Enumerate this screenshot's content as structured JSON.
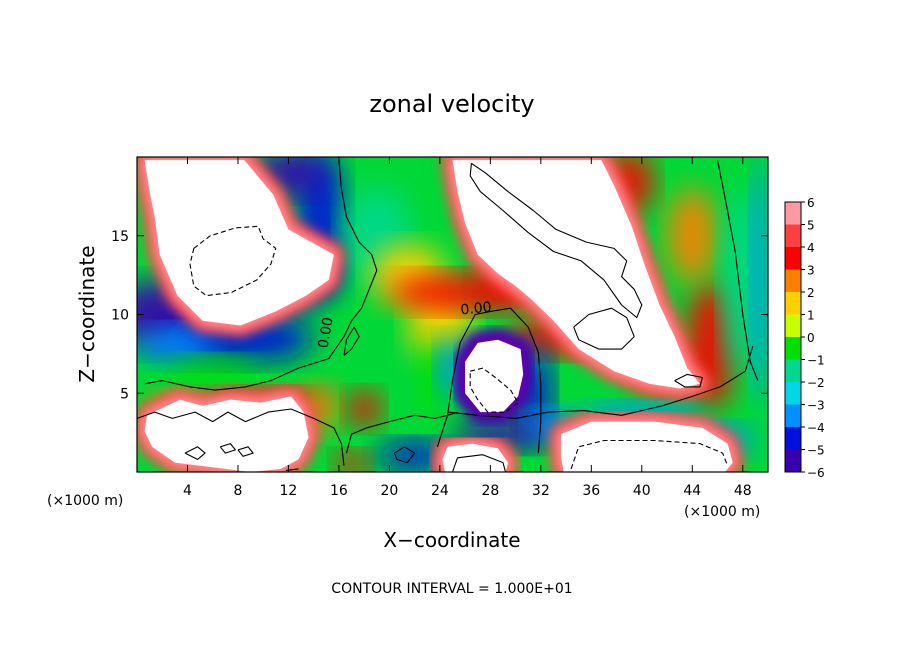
{
  "chart_data": {
    "type": "heatmap",
    "title": "zonal velocity",
    "xlabel": "X−coordinate",
    "ylabel": "Z−coordinate",
    "x_unit_left": "(×1000 m)",
    "x_unit_right": "(×1000 m)",
    "xlim": [
      0,
      50
    ],
    "ylim": [
      0,
      20
    ],
    "x_ticks": [
      4,
      8,
      12,
      16,
      20,
      24,
      28,
      32,
      36,
      40,
      44,
      48
    ],
    "y_ticks": [
      5,
      10,
      15
    ],
    "contour_label": "0.00",
    "contour_interval_text": "CONTOUR INTERVAL = 1.000E+01",
    "colorbar": {
      "range": [
        -6,
        6
      ],
      "levels": [
        6,
        5,
        4,
        3,
        2,
        1,
        0,
        -1,
        -2,
        -3,
        -4,
        -5,
        -6
      ],
      "labels": [
        "6",
        "5",
        "4",
        "3",
        "2",
        "1",
        "0",
        "−1",
        "−2",
        "−3",
        "−4",
        "−5",
        "−6"
      ],
      "colors": [
        "#ff9aa0",
        "#ff4040",
        "#ff0000",
        "#ff8000",
        "#ffd000",
        "#c8ff00",
        "#00e000",
        "#00d890",
        "#00d8e8",
        "#0090ff",
        "#0010e0",
        "#3800b0",
        "#7000a8"
      ]
    },
    "saturated_regions": [
      {
        "label": "+",
        "polygon": [
          [
            0.6,
            19.8
          ],
          [
            8.5,
            19.8
          ],
          [
            10.8,
            17.6
          ],
          [
            12.0,
            15.4
          ],
          [
            13.8,
            14.6
          ],
          [
            15.6,
            13.8
          ],
          [
            15.2,
            12.2
          ],
          [
            13.4,
            11.2
          ],
          [
            11.0,
            10.2
          ],
          [
            8.2,
            9.3
          ],
          [
            5.2,
            9.6
          ],
          [
            3.2,
            11.2
          ],
          [
            1.8,
            13.8
          ],
          [
            1.4,
            16.2
          ],
          [
            1.0,
            17.8
          ]
        ]
      },
      {
        "label": "+",
        "polygon": [
          [
            25.0,
            19.8
          ],
          [
            36.8,
            19.8
          ],
          [
            37.8,
            18.2
          ],
          [
            39.2,
            15.6
          ],
          [
            40.2,
            13.2
          ],
          [
            41.4,
            10.6
          ],
          [
            42.6,
            8.6
          ],
          [
            43.6,
            6.6
          ],
          [
            44.6,
            5.6
          ],
          [
            43.0,
            5.3
          ],
          [
            40.6,
            5.6
          ],
          [
            37.8,
            6.4
          ],
          [
            35.0,
            7.8
          ],
          [
            33.0,
            9.6
          ],
          [
            31.2,
            11.0
          ],
          [
            30.0,
            11.8
          ],
          [
            28.6,
            12.6
          ],
          [
            27.0,
            13.8
          ],
          [
            26.0,
            15.8
          ],
          [
            25.4,
            17.8
          ]
        ]
      },
      {
        "label": "−",
        "polygon": [
          [
            26.0,
            7.0
          ],
          [
            27.0,
            8.2
          ],
          [
            28.6,
            8.4
          ],
          [
            30.4,
            7.8
          ],
          [
            30.6,
            6.2
          ],
          [
            30.2,
            4.8
          ],
          [
            29.0,
            3.8
          ],
          [
            27.2,
            3.8
          ],
          [
            26.0,
            5.0
          ]
        ]
      },
      {
        "label": "+",
        "polygon": [
          [
            0.8,
            3.6
          ],
          [
            3.4,
            4.6
          ],
          [
            5.2,
            4.2
          ],
          [
            7.4,
            4.6
          ],
          [
            9.8,
            4.4
          ],
          [
            12.2,
            4.8
          ],
          [
            13.2,
            3.8
          ],
          [
            13.6,
            2.2
          ],
          [
            12.8,
            0.8
          ],
          [
            11.4,
            0.2
          ],
          [
            9.0,
            0.0
          ],
          [
            6.0,
            0.3
          ],
          [
            3.0,
            0.6
          ],
          [
            1.2,
            1.6
          ],
          [
            0.6,
            2.6
          ]
        ]
      },
      {
        "label": "+",
        "polygon": [
          [
            33.6,
            2.4
          ],
          [
            36.0,
            3.2
          ],
          [
            41.0,
            3.2
          ],
          [
            44.8,
            2.8
          ],
          [
            46.8,
            1.8
          ],
          [
            47.2,
            0.6
          ],
          [
            46.6,
            0.0
          ],
          [
            33.8,
            0.0
          ],
          [
            33.6,
            1.0
          ]
        ]
      },
      {
        "label": "+",
        "polygon": [
          [
            24.6,
            1.6
          ],
          [
            26.6,
            1.8
          ],
          [
            28.6,
            1.5
          ],
          [
            29.4,
            0.6
          ],
          [
            29.2,
            0.0
          ],
          [
            24.4,
            0.0
          ],
          [
            24.2,
            0.8
          ]
        ]
      }
    ],
    "contours": [
      {
        "style": "dashed",
        "points": [
          [
            4.5,
            14.2
          ],
          [
            5.8,
            15.0
          ],
          [
            7.8,
            15.5
          ],
          [
            9.6,
            15.6
          ],
          [
            10.0,
            14.8
          ],
          [
            11.0,
            14.2
          ],
          [
            10.6,
            13.2
          ],
          [
            9.5,
            12.2
          ],
          [
            7.5,
            11.4
          ],
          [
            5.5,
            11.2
          ],
          [
            4.5,
            11.8
          ],
          [
            4.2,
            13.2
          ],
          [
            4.5,
            14.2
          ]
        ]
      },
      {
        "style": "solid",
        "points": [
          [
            16.0,
            19.8
          ],
          [
            16.2,
            18.0
          ],
          [
            16.6,
            16.2
          ],
          [
            17.6,
            14.6
          ],
          [
            18.6,
            13.8
          ],
          [
            19.0,
            12.8
          ],
          [
            18.4,
            11.6
          ],
          [
            17.8,
            10.4
          ],
          [
            17.0,
            9.6
          ],
          [
            16.4,
            8.6
          ],
          [
            15.2,
            7.2
          ],
          [
            12.8,
            6.6
          ],
          [
            10.6,
            5.8
          ],
          [
            8.6,
            5.4
          ],
          [
            6.2,
            5.2
          ],
          [
            4.2,
            5.4
          ],
          [
            2.0,
            5.8
          ],
          [
            0.6,
            5.6
          ]
        ]
      },
      {
        "style": "solid",
        "points": [
          [
            0.0,
            3.4
          ],
          [
            1.4,
            3.8
          ],
          [
            2.8,
            3.4
          ],
          [
            4.6,
            3.8
          ],
          [
            6.0,
            3.2
          ],
          [
            7.2,
            3.8
          ],
          [
            8.6,
            3.2
          ],
          [
            10.4,
            3.8
          ],
          [
            12.2,
            4.0
          ],
          [
            14.0,
            3.4
          ],
          [
            15.6,
            2.8
          ],
          [
            16.2,
            1.8
          ],
          [
            16.4,
            0.4
          ]
        ]
      },
      {
        "style": "solid",
        "points": [
          [
            23.8,
            1.6
          ],
          [
            24.6,
            3.6
          ],
          [
            25.0,
            5.8
          ],
          [
            25.6,
            8.2
          ],
          [
            26.8,
            10.0
          ],
          [
            28.0,
            10.2
          ],
          [
            29.6,
            10.4
          ],
          [
            31.0,
            9.2
          ],
          [
            31.8,
            7.6
          ],
          [
            32.0,
            5.6
          ],
          [
            32.0,
            3.2
          ],
          [
            31.8,
            1.2
          ]
        ]
      },
      {
        "style": "solid",
        "points": [
          [
            16.6,
            1.2
          ],
          [
            17.0,
            2.4
          ],
          [
            18.2,
            2.8
          ],
          [
            20.0,
            3.2
          ],
          [
            22.0,
            3.6
          ],
          [
            23.6,
            3.4
          ],
          [
            24.6,
            3.6
          ],
          [
            25.4,
            3.8
          ]
        ]
      },
      {
        "style": "solid",
        "points": [
          [
            24.6,
            3.8
          ],
          [
            27.0,
            3.6
          ],
          [
            30.0,
            3.4
          ],
          [
            32.6,
            3.8
          ],
          [
            35.4,
            3.9
          ],
          [
            38.4,
            3.6
          ],
          [
            41.6,
            4.2
          ],
          [
            44.0,
            4.8
          ],
          [
            46.2,
            5.4
          ],
          [
            48.2,
            6.4
          ],
          [
            48.8,
            8.0
          ]
        ]
      },
      {
        "style": "solid",
        "points": [
          [
            46.0,
            19.8
          ],
          [
            46.6,
            17.4
          ],
          [
            47.4,
            14.0
          ],
          [
            48.0,
            10.0
          ],
          [
            48.6,
            7.0
          ],
          [
            49.2,
            5.8
          ]
        ]
      },
      {
        "style": "solid",
        "points": [
          [
            16.4,
            7.4
          ],
          [
            16.6,
            8.4
          ],
          [
            17.2,
            9.2
          ],
          [
            17.6,
            8.6
          ],
          [
            17.0,
            7.8
          ],
          [
            16.4,
            7.4
          ]
        ]
      },
      {
        "style": "solid",
        "points": [
          [
            26.5,
            19.6
          ],
          [
            27.6,
            19.0
          ],
          [
            29.4,
            17.8
          ],
          [
            31.4,
            16.6
          ],
          [
            33.2,
            15.4
          ],
          [
            35.6,
            14.6
          ],
          [
            37.8,
            14.2
          ],
          [
            38.8,
            13.4
          ],
          [
            38.4,
            12.4
          ],
          [
            39.4,
            11.6
          ],
          [
            40.0,
            10.6
          ],
          [
            39.6,
            9.8
          ],
          [
            38.4,
            10.6
          ],
          [
            37.0,
            12.2
          ],
          [
            35.2,
            13.4
          ],
          [
            33.0,
            14.0
          ],
          [
            31.0,
            15.2
          ],
          [
            29.0,
            16.6
          ],
          [
            27.2,
            17.8
          ],
          [
            26.4,
            18.8
          ],
          [
            26.5,
            19.6
          ]
        ]
      },
      {
        "style": "solid",
        "points": [
          [
            34.6,
            9.2
          ],
          [
            35.8,
            10.0
          ],
          [
            37.6,
            10.4
          ],
          [
            38.8,
            9.8
          ],
          [
            39.4,
            8.6
          ],
          [
            38.4,
            7.8
          ],
          [
            36.6,
            7.8
          ],
          [
            35.0,
            8.4
          ],
          [
            34.6,
            9.2
          ]
        ]
      },
      {
        "style": "solid",
        "points": [
          [
            42.6,
            5.8
          ],
          [
            43.6,
            6.2
          ],
          [
            44.8,
            6.0
          ],
          [
            44.6,
            5.4
          ],
          [
            43.4,
            5.4
          ],
          [
            42.6,
            5.8
          ]
        ]
      },
      {
        "style": "dashed",
        "points": [
          [
            26.4,
            6.4
          ],
          [
            27.4,
            6.6
          ],
          [
            28.4,
            6.0
          ],
          [
            29.6,
            5.2
          ],
          [
            30.2,
            4.4
          ],
          [
            29.2,
            3.8
          ],
          [
            27.8,
            3.8
          ],
          [
            27.0,
            4.6
          ],
          [
            26.4,
            5.4
          ],
          [
            26.4,
            6.4
          ]
        ]
      },
      {
        "style": "dashed",
        "points": [
          [
            34.4,
            0.2
          ],
          [
            35.0,
            1.6
          ],
          [
            37.0,
            2.0
          ],
          [
            41.0,
            2.0
          ],
          [
            44.6,
            1.8
          ],
          [
            46.4,
            1.2
          ],
          [
            46.8,
            0.4
          ]
        ]
      },
      {
        "style": "solid",
        "points": [
          [
            3.8,
            1.2
          ],
          [
            4.8,
            1.6
          ],
          [
            5.4,
            1.2
          ],
          [
            4.8,
            0.8
          ],
          [
            3.8,
            1.2
          ]
        ]
      },
      {
        "style": "solid",
        "points": [
          [
            6.6,
            1.6
          ],
          [
            7.4,
            1.8
          ],
          [
            7.8,
            1.4
          ],
          [
            7.0,
            1.2
          ],
          [
            6.6,
            1.6
          ]
        ]
      },
      {
        "style": "solid",
        "points": [
          [
            8.0,
            1.4
          ],
          [
            8.8,
            1.6
          ],
          [
            9.2,
            1.2
          ],
          [
            8.4,
            1.0
          ],
          [
            8.0,
            1.4
          ]
        ]
      },
      {
        "style": "solid",
        "points": [
          [
            20.4,
            1.2
          ],
          [
            21.2,
            1.6
          ],
          [
            22.0,
            1.2
          ],
          [
            21.4,
            0.6
          ],
          [
            20.6,
            0.8
          ],
          [
            20.4,
            1.2
          ]
        ]
      },
      {
        "style": "solid",
        "points": [
          [
            25.0,
            0.0
          ],
          [
            25.4,
            0.9
          ],
          [
            27.4,
            1.1
          ],
          [
            29.0,
            0.6
          ],
          [
            29.2,
            0.0
          ]
        ]
      },
      {
        "style": "solid",
        "points": [
          [
            11.8,
            0.1
          ],
          [
            12.8,
            0.2
          ]
        ]
      }
    ],
    "contour_label_positions": [
      [
        15.3,
        8.8
      ],
      [
        26.9,
        10.1
      ]
    ]
  }
}
